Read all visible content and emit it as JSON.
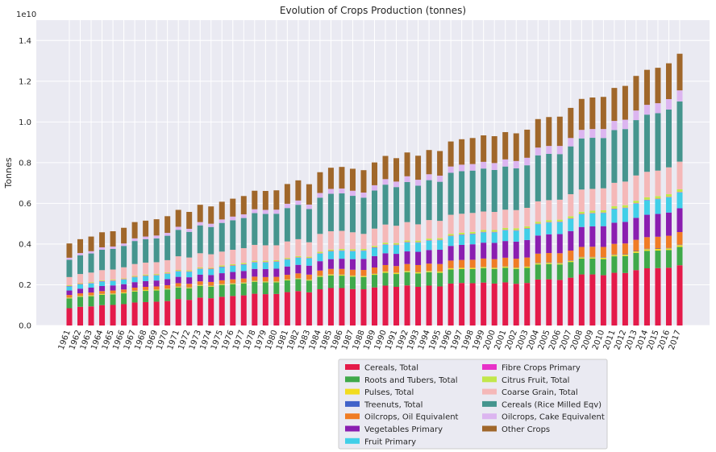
{
  "chart_data": {
    "type": "bar",
    "stacked": true,
    "title": "Evolution of Crops Production (tonnes)",
    "xlabel": "",
    "ylabel": "Tonnes",
    "y_offset_text": "1e10",
    "ylim": [
      0,
      1.5
    ],
    "y_ticks": [
      "0.0",
      "0.2",
      "0.4",
      "0.6",
      "0.8",
      "1.0",
      "1.2",
      "1.4"
    ],
    "grid": true,
    "legend_position": "bottom-center",
    "categories": [
      "1961",
      "1962",
      "1963",
      "1964",
      "1965",
      "1966",
      "1967",
      "1968",
      "1969",
      "1970",
      "1971",
      "1972",
      "1973",
      "1974",
      "1975",
      "1976",
      "1977",
      "1978",
      "1979",
      "1980",
      "1981",
      "1982",
      "1983",
      "1984",
      "1985",
      "1986",
      "1987",
      "1988",
      "1989",
      "1990",
      "1991",
      "1992",
      "1993",
      "1994",
      "1995",
      "1996",
      "1997",
      "1998",
      "1999",
      "2000",
      "2001",
      "2002",
      "2003",
      "2004",
      "2005",
      "2006",
      "2007",
      "2008",
      "2009",
      "2010",
      "2011",
      "2012",
      "2013",
      "2014",
      "2015",
      "2016",
      "2017"
    ],
    "series": [
      {
        "name": "Cereals, Total",
        "color": "#e41a4a",
        "values": [
          0.085,
          0.092,
          0.094,
          0.1,
          0.101,
          0.105,
          0.113,
          0.115,
          0.117,
          0.12,
          0.13,
          0.126,
          0.137,
          0.134,
          0.141,
          0.145,
          0.148,
          0.156,
          0.154,
          0.155,
          0.164,
          0.169,
          0.163,
          0.178,
          0.184,
          0.184,
          0.179,
          0.178,
          0.187,
          0.196,
          0.19,
          0.197,
          0.19,
          0.196,
          0.192,
          0.206,
          0.209,
          0.208,
          0.211,
          0.206,
          0.212,
          0.205,
          0.209,
          0.226,
          0.227,
          0.224,
          0.235,
          0.251,
          0.251,
          0.247,
          0.259,
          0.258,
          0.272,
          0.281,
          0.282,
          0.284,
          0.296
        ]
      },
      {
        "name": "Roots and Tubers, Total",
        "color": "#3fa94a",
        "values": [
          0.048,
          0.049,
          0.05,
          0.051,
          0.052,
          0.053,
          0.054,
          0.055,
          0.055,
          0.057,
          0.057,
          0.057,
          0.058,
          0.057,
          0.058,
          0.058,
          0.059,
          0.059,
          0.058,
          0.057,
          0.058,
          0.059,
          0.058,
          0.061,
          0.062,
          0.061,
          0.061,
          0.06,
          0.062,
          0.063,
          0.063,
          0.065,
          0.066,
          0.066,
          0.067,
          0.069,
          0.068,
          0.069,
          0.071,
          0.072,
          0.072,
          0.073,
          0.074,
          0.074,
          0.075,
          0.076,
          0.077,
          0.078,
          0.078,
          0.079,
          0.081,
          0.083,
          0.085,
          0.086,
          0.086,
          0.087,
          0.09
        ]
      },
      {
        "name": "Pulses, Total",
        "color": "#f2dc1f",
        "values": [
          0.004,
          0.004,
          0.004,
          0.004,
          0.004,
          0.004,
          0.004,
          0.004,
          0.004,
          0.004,
          0.004,
          0.004,
          0.004,
          0.004,
          0.004,
          0.004,
          0.004,
          0.004,
          0.004,
          0.004,
          0.004,
          0.004,
          0.004,
          0.005,
          0.005,
          0.005,
          0.005,
          0.005,
          0.005,
          0.006,
          0.006,
          0.006,
          0.006,
          0.006,
          0.006,
          0.006,
          0.006,
          0.006,
          0.006,
          0.006,
          0.006,
          0.006,
          0.006,
          0.006,
          0.006,
          0.006,
          0.006,
          0.006,
          0.006,
          0.007,
          0.007,
          0.007,
          0.007,
          0.008,
          0.008,
          0.008,
          0.009
        ]
      },
      {
        "name": "Treenuts, Total",
        "color": "#4162c9",
        "values": [
          0.001,
          0.001,
          0.001,
          0.001,
          0.001,
          0.001,
          0.001,
          0.001,
          0.001,
          0.001,
          0.001,
          0.001,
          0.001,
          0.001,
          0.001,
          0.001,
          0.001,
          0.001,
          0.001,
          0.001,
          0.001,
          0.001,
          0.001,
          0.001,
          0.001,
          0.001,
          0.001,
          0.001,
          0.001,
          0.001,
          0.001,
          0.001,
          0.001,
          0.001,
          0.001,
          0.001,
          0.001,
          0.001,
          0.001,
          0.001,
          0.001,
          0.001,
          0.001,
          0.002,
          0.002,
          0.002,
          0.002,
          0.002,
          0.002,
          0.002,
          0.002,
          0.002,
          0.002,
          0.002,
          0.002,
          0.002,
          0.002
        ]
      },
      {
        "name": "Oilcrops, Oil Equivalent",
        "color": "#f07c25",
        "values": [
          0.012,
          0.012,
          0.013,
          0.013,
          0.014,
          0.014,
          0.014,
          0.015,
          0.015,
          0.016,
          0.016,
          0.017,
          0.017,
          0.018,
          0.018,
          0.019,
          0.019,
          0.02,
          0.021,
          0.022,
          0.022,
          0.023,
          0.024,
          0.025,
          0.026,
          0.027,
          0.028,
          0.029,
          0.03,
          0.031,
          0.032,
          0.033,
          0.034,
          0.035,
          0.036,
          0.037,
          0.038,
          0.039,
          0.04,
          0.041,
          0.042,
          0.043,
          0.044,
          0.045,
          0.046,
          0.047,
          0.048,
          0.049,
          0.05,
          0.051,
          0.052,
          0.053,
          0.055,
          0.057,
          0.058,
          0.06,
          0.062
        ]
      },
      {
        "name": "Vegetables Primary",
        "color": "#8a1eb0",
        "values": [
          0.022,
          0.023,
          0.024,
          0.025,
          0.025,
          0.026,
          0.027,
          0.028,
          0.029,
          0.03,
          0.031,
          0.032,
          0.033,
          0.034,
          0.035,
          0.036,
          0.037,
          0.038,
          0.039,
          0.04,
          0.041,
          0.042,
          0.044,
          0.046,
          0.048,
          0.05,
          0.052,
          0.054,
          0.056,
          0.058,
          0.06,
          0.062,
          0.065,
          0.067,
          0.07,
          0.072,
          0.074,
          0.076,
          0.078,
          0.08,
          0.082,
          0.084,
          0.086,
          0.089,
          0.092,
          0.094,
          0.096,
          0.098,
          0.1,
          0.102,
          0.104,
          0.106,
          0.108,
          0.11,
          0.112,
          0.114,
          0.117
        ]
      },
      {
        "name": "Fruit Primary",
        "color": "#41cfe8",
        "values": [
          0.02,
          0.021,
          0.021,
          0.022,
          0.022,
          0.023,
          0.024,
          0.025,
          0.025,
          0.026,
          0.027,
          0.027,
          0.028,
          0.029,
          0.03,
          0.03,
          0.031,
          0.032,
          0.033,
          0.034,
          0.034,
          0.035,
          0.036,
          0.037,
          0.038,
          0.039,
          0.039,
          0.04,
          0.041,
          0.042,
          0.043,
          0.044,
          0.045,
          0.046,
          0.047,
          0.048,
          0.049,
          0.05,
          0.051,
          0.052,
          0.053,
          0.054,
          0.055,
          0.056,
          0.058,
          0.059,
          0.06,
          0.062,
          0.064,
          0.065,
          0.067,
          0.068,
          0.07,
          0.072,
          0.073,
          0.075,
          0.078
        ]
      },
      {
        "name": "Fibre Crops Primary",
        "color": "#e831c8",
        "values": [
          0.002,
          0.002,
          0.002,
          0.002,
          0.002,
          0.002,
          0.002,
          0.002,
          0.002,
          0.002,
          0.002,
          0.002,
          0.002,
          0.002,
          0.002,
          0.002,
          0.002,
          0.002,
          0.002,
          0.002,
          0.002,
          0.002,
          0.002,
          0.002,
          0.002,
          0.002,
          0.002,
          0.002,
          0.002,
          0.002,
          0.002,
          0.002,
          0.002,
          0.002,
          0.002,
          0.002,
          0.002,
          0.002,
          0.002,
          0.002,
          0.002,
          0.002,
          0.002,
          0.002,
          0.002,
          0.002,
          0.002,
          0.002,
          0.002,
          0.002,
          0.002,
          0.002,
          0.002,
          0.002,
          0.002,
          0.002,
          0.002
        ]
      },
      {
        "name": "Citrus Fruit, Total",
        "color": "#c2e74b",
        "values": [
          0.004,
          0.004,
          0.004,
          0.004,
          0.004,
          0.004,
          0.005,
          0.005,
          0.005,
          0.005,
          0.005,
          0.005,
          0.005,
          0.005,
          0.006,
          0.006,
          0.006,
          0.006,
          0.006,
          0.006,
          0.006,
          0.006,
          0.006,
          0.007,
          0.007,
          0.007,
          0.007,
          0.007,
          0.007,
          0.008,
          0.008,
          0.008,
          0.008,
          0.008,
          0.008,
          0.009,
          0.009,
          0.009,
          0.009,
          0.009,
          0.009,
          0.01,
          0.01,
          0.01,
          0.01,
          0.01,
          0.011,
          0.011,
          0.011,
          0.011,
          0.012,
          0.012,
          0.012,
          0.012,
          0.013,
          0.013,
          0.013
        ]
      },
      {
        "name": "Coarse Grain, Total",
        "color": "#f5b8b8",
        "values": [
          0.04,
          0.045,
          0.047,
          0.05,
          0.05,
          0.054,
          0.058,
          0.059,
          0.058,
          0.06,
          0.067,
          0.063,
          0.07,
          0.066,
          0.068,
          0.071,
          0.073,
          0.078,
          0.076,
          0.073,
          0.081,
          0.083,
          0.071,
          0.088,
          0.09,
          0.089,
          0.084,
          0.074,
          0.085,
          0.089,
          0.085,
          0.09,
          0.08,
          0.091,
          0.085,
          0.094,
          0.093,
          0.093,
          0.091,
          0.089,
          0.09,
          0.089,
          0.091,
          0.1,
          0.098,
          0.098,
          0.108,
          0.109,
          0.107,
          0.108,
          0.115,
          0.116,
          0.124,
          0.125,
          0.125,
          0.132,
          0.136
        ]
      },
      {
        "name": "Cereals (Rice Milled Eqv)",
        "color": "#45958e",
        "values": [
          0.085,
          0.092,
          0.094,
          0.1,
          0.101,
          0.105,
          0.113,
          0.115,
          0.117,
          0.12,
          0.13,
          0.126,
          0.137,
          0.134,
          0.141,
          0.145,
          0.148,
          0.156,
          0.154,
          0.155,
          0.164,
          0.169,
          0.163,
          0.178,
          0.184,
          0.184,
          0.179,
          0.178,
          0.187,
          0.196,
          0.19,
          0.197,
          0.19,
          0.196,
          0.192,
          0.206,
          0.209,
          0.208,
          0.211,
          0.206,
          0.212,
          0.205,
          0.209,
          0.226,
          0.227,
          0.224,
          0.235,
          0.251,
          0.251,
          0.247,
          0.259,
          0.258,
          0.272,
          0.281,
          0.282,
          0.284,
          0.296
        ]
      },
      {
        "name": "Oilcrops, Cake Equivalent",
        "color": "#dcb5f0",
        "values": [
          0.01,
          0.011,
          0.011,
          0.012,
          0.012,
          0.012,
          0.013,
          0.013,
          0.014,
          0.014,
          0.015,
          0.015,
          0.016,
          0.016,
          0.017,
          0.018,
          0.018,
          0.019,
          0.02,
          0.02,
          0.021,
          0.021,
          0.022,
          0.023,
          0.024,
          0.024,
          0.025,
          0.025,
          0.026,
          0.027,
          0.027,
          0.028,
          0.029,
          0.029,
          0.03,
          0.031,
          0.032,
          0.032,
          0.033,
          0.034,
          0.035,
          0.036,
          0.037,
          0.038,
          0.039,
          0.04,
          0.041,
          0.042,
          0.043,
          0.044,
          0.045,
          0.046,
          0.047,
          0.048,
          0.049,
          0.051,
          0.054
        ]
      },
      {
        "name": "Other Crops",
        "color": "#a0672a",
        "values": [
          0.07,
          0.068,
          0.072,
          0.074,
          0.075,
          0.077,
          0.08,
          0.078,
          0.08,
          0.082,
          0.083,
          0.083,
          0.085,
          0.085,
          0.087,
          0.088,
          0.09,
          0.091,
          0.093,
          0.095,
          0.097,
          0.099,
          0.1,
          0.102,
          0.104,
          0.106,
          0.108,
          0.11,
          0.112,
          0.114,
          0.115,
          0.117,
          0.118,
          0.119,
          0.121,
          0.123,
          0.125,
          0.128,
          0.13,
          0.132,
          0.134,
          0.136,
          0.138,
          0.14,
          0.142,
          0.144,
          0.148,
          0.152,
          0.155,
          0.158,
          0.162,
          0.166,
          0.17,
          0.172,
          0.174,
          0.176,
          0.18
        ]
      }
    ]
  }
}
